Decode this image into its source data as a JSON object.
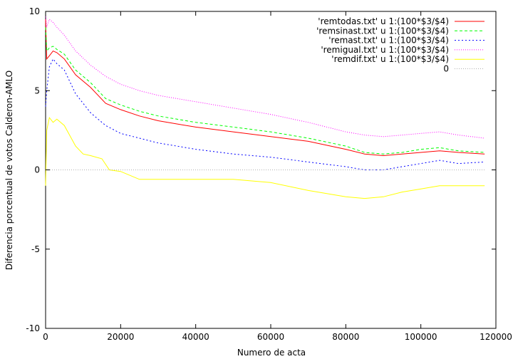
{
  "chart_data": {
    "type": "line",
    "xlabel": "Numero de acta",
    "ylabel": "Diferencia porcentual de votos Calderon-AMLO",
    "xlim": [
      0,
      120000
    ],
    "ylim": [
      -10,
      10
    ],
    "x_ticks": [
      0,
      20000,
      40000,
      60000,
      80000,
      100000,
      120000
    ],
    "x_tick_labels": [
      "0",
      "20000",
      "40000",
      "60000",
      "80000",
      "100000",
      "120000"
    ],
    "y_ticks": [
      -10,
      -5,
      0,
      5,
      10
    ],
    "y_tick_labels": [
      "-10",
      "-5",
      "0",
      "5",
      "10"
    ],
    "legend_position": "top-right",
    "grid": false,
    "series": [
      {
        "name": "'remtodas.txt' u 1:(100*$3/$4)",
        "color": "#ff0000",
        "dash": "",
        "x": [
          0,
          300,
          1000,
          2000,
          3000,
          5000,
          8000,
          12000,
          16000,
          20000,
          25000,
          30000,
          35000,
          40000,
          50000,
          60000,
          70000,
          80000,
          85000,
          90000,
          95000,
          100000,
          105000,
          110000,
          117000
        ],
        "y": [
          9.5,
          7.0,
          7.2,
          7.5,
          7.4,
          7.0,
          6.0,
          5.2,
          4.2,
          3.8,
          3.4,
          3.1,
          2.9,
          2.7,
          2.4,
          2.1,
          1.8,
          1.3,
          1.0,
          0.9,
          1.0,
          1.1,
          1.2,
          1.1,
          1.0
        ]
      },
      {
        "name": "'remsinast.txt' u 1:(100*$3/$4)",
        "color": "#00ff00",
        "dash": "4,3",
        "x": [
          0,
          300,
          1000,
          2000,
          3000,
          5000,
          8000,
          12000,
          16000,
          20000,
          25000,
          30000,
          35000,
          40000,
          50000,
          60000,
          70000,
          80000,
          85000,
          90000,
          95000,
          100000,
          105000,
          110000,
          117000
        ],
        "y": [
          9.0,
          7.5,
          7.7,
          7.8,
          7.6,
          7.3,
          6.3,
          5.5,
          4.5,
          4.1,
          3.7,
          3.4,
          3.2,
          3.0,
          2.7,
          2.4,
          2.0,
          1.5,
          1.1,
          1.0,
          1.1,
          1.3,
          1.4,
          1.2,
          1.1
        ]
      },
      {
        "name": "'remast.txt' u 1:(100*$3/$4)",
        "color": "#0000ff",
        "dash": "2,3",
        "x": [
          0,
          300,
          1000,
          2000,
          3000,
          5000,
          8000,
          12000,
          16000,
          20000,
          25000,
          30000,
          35000,
          40000,
          50000,
          60000,
          70000,
          80000,
          85000,
          90000,
          95000,
          100000,
          105000,
          110000,
          117000
        ],
        "y": [
          4.0,
          5.0,
          6.5,
          7.0,
          6.7,
          6.3,
          4.8,
          3.6,
          2.8,
          2.3,
          2.0,
          1.7,
          1.5,
          1.3,
          1.0,
          0.8,
          0.5,
          0.2,
          0.0,
          0.0,
          0.2,
          0.4,
          0.6,
          0.4,
          0.5
        ]
      },
      {
        "name": "'remigual.txt' u 1:(100*$3/$4)",
        "color": "#ff00ff",
        "dash": "1,2",
        "x": [
          0,
          300,
          1000,
          2000,
          3000,
          5000,
          8000,
          12000,
          16000,
          20000,
          25000,
          30000,
          35000,
          40000,
          50000,
          60000,
          70000,
          80000,
          85000,
          90000,
          95000,
          100000,
          105000,
          110000,
          117000
        ],
        "y": [
          9.8,
          9.0,
          9.5,
          9.3,
          9.0,
          8.5,
          7.5,
          6.6,
          5.9,
          5.4,
          5.0,
          4.7,
          4.5,
          4.3,
          3.9,
          3.5,
          3.0,
          2.4,
          2.2,
          2.1,
          2.2,
          2.3,
          2.4,
          2.2,
          2.0
        ]
      },
      {
        "name": "'remdif.txt' u 1:(100*$3/$4)",
        "color": "#ffff00",
        "dash": "",
        "x": [
          0,
          300,
          1000,
          2000,
          3000,
          5000,
          8000,
          10000,
          12000,
          15000,
          17000,
          20000,
          25000,
          30000,
          40000,
          50000,
          60000,
          70000,
          80000,
          85000,
          90000,
          95000,
          100000,
          105000,
          117000
        ],
        "y": [
          -1.0,
          2.5,
          3.3,
          3.0,
          3.2,
          2.8,
          1.5,
          1.0,
          0.9,
          0.7,
          0.0,
          -0.1,
          -0.6,
          -0.6,
          -0.6,
          -0.6,
          -0.8,
          -1.3,
          -1.7,
          -1.8,
          -1.7,
          -1.4,
          -1.2,
          -1.0,
          -1.0
        ]
      },
      {
        "name": "0",
        "color": "#b0b0b0",
        "dash": "1,2",
        "x": [
          0,
          117000
        ],
        "y": [
          0,
          0
        ]
      }
    ]
  }
}
